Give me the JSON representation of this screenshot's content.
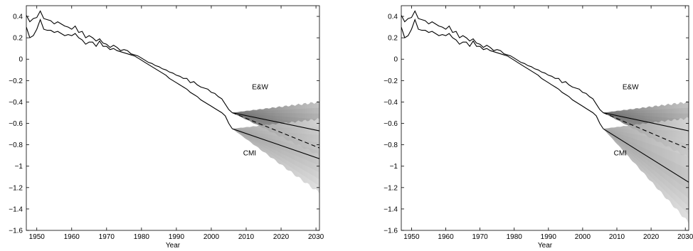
{
  "chart_data": [
    {
      "type": "line",
      "xlabel": "Year",
      "ylabel": "",
      "xlim": [
        1947,
        2031
      ],
      "ylim": [
        -1.6,
        0.5
      ],
      "xticks": [
        1950,
        1960,
        1970,
        1980,
        1990,
        2000,
        2010,
        2020,
        2030
      ],
      "yticks": [
        0.4,
        0.2,
        0,
        -0.2,
        -0.4,
        -0.6,
        -0.8,
        -1,
        -1.2,
        -1.4,
        -1.6
      ],
      "x_tick_labels": [
        "1950",
        "1960",
        "1970",
        "1980",
        "1990",
        "2000",
        "2010",
        "2020",
        "2030"
      ],
      "y_tick_labels": [
        "0.4",
        "0.2",
        "0",
        "−0.2",
        "−0.4",
        "−0.6",
        "−0.8",
        "−1",
        "−1.2",
        "−1.4",
        "−1.6"
      ],
      "grid": false,
      "annotations": [
        {
          "text": "E&W",
          "x": 2014,
          "y": -0.28
        },
        {
          "text": "CMI",
          "x": 2011,
          "y": -0.9
        }
      ],
      "historical": [
        {
          "label": "E&W",
          "x": [
            1947,
            1948,
            1949,
            1950,
            1951,
            1952,
            1953,
            1954,
            1955,
            1956,
            1957,
            1958,
            1959,
            1960,
            1961,
            1962,
            1963,
            1964,
            1965,
            1966,
            1967,
            1968,
            1969,
            1970,
            1971,
            1972,
            1973,
            1974,
            1975,
            1976,
            1977,
            1978,
            1979,
            1980,
            1981,
            1982,
            1983,
            1984,
            1985,
            1986,
            1987,
            1988,
            1989,
            1990,
            1991,
            1992,
            1993,
            1994,
            1995,
            1996,
            1997,
            1998,
            1999,
            2000,
            2001,
            2002,
            2003,
            2004,
            2005,
            2006
          ],
          "y": [
            0.41,
            0.35,
            0.38,
            0.39,
            0.45,
            0.38,
            0.37,
            0.36,
            0.33,
            0.35,
            0.33,
            0.31,
            0.3,
            0.28,
            0.31,
            0.25,
            0.26,
            0.2,
            0.22,
            0.2,
            0.17,
            0.19,
            0.15,
            0.14,
            0.11,
            0.13,
            0.11,
            0.08,
            0.09,
            0.08,
            0.05,
            0.04,
            0.03,
            0.01,
            -0.01,
            -0.03,
            -0.04,
            -0.06,
            -0.07,
            -0.09,
            -0.1,
            -0.12,
            -0.13,
            -0.15,
            -0.16,
            -0.18,
            -0.18,
            -0.22,
            -0.21,
            -0.24,
            -0.26,
            -0.27,
            -0.28,
            -0.31,
            -0.32,
            -0.35,
            -0.37,
            -0.42,
            -0.47,
            -0.5
          ]
        },
        {
          "label": "CMI",
          "x": [
            1947,
            1948,
            1949,
            1950,
            1951,
            1952,
            1953,
            1954,
            1955,
            1956,
            1957,
            1958,
            1959,
            1960,
            1961,
            1962,
            1963,
            1964,
            1965,
            1966,
            1967,
            1968,
            1969,
            1970,
            1971,
            1972,
            1973,
            1974,
            1975,
            1976,
            1977,
            1978,
            1979,
            1980,
            1981,
            1982,
            1983,
            1984,
            1985,
            1986,
            1987,
            1988,
            1989,
            1990,
            1991,
            1992,
            1993,
            1994,
            1995,
            1996,
            1997,
            1998,
            1999,
            2000,
            2001,
            2002,
            2003,
            2004,
            2005,
            2006
          ],
          "y": [
            0.3,
            0.2,
            0.22,
            0.28,
            0.37,
            0.28,
            0.27,
            0.27,
            0.25,
            0.26,
            0.24,
            0.22,
            0.23,
            0.22,
            0.24,
            0.2,
            0.18,
            0.14,
            0.16,
            0.16,
            0.12,
            0.17,
            0.12,
            0.12,
            0.09,
            0.1,
            0.08,
            0.07,
            0.06,
            0.05,
            0.04,
            0.03,
            0.01,
            -0.01,
            -0.03,
            -0.05,
            -0.07,
            -0.09,
            -0.11,
            -0.13,
            -0.15,
            -0.18,
            -0.2,
            -0.22,
            -0.24,
            -0.26,
            -0.28,
            -0.31,
            -0.33,
            -0.35,
            -0.38,
            -0.4,
            -0.42,
            -0.44,
            -0.46,
            -0.48,
            -0.5,
            -0.53,
            -0.6,
            -0.65
          ]
        }
      ],
      "projections": [
        {
          "label": "E&W",
          "x": [
            2006,
            2031
          ],
          "median": [
            -0.5,
            -0.67
          ],
          "dashed": [
            -0.5,
            -0.83
          ],
          "fan_upper": [
            -0.5,
            -0.4
          ],
          "fan_lower": [
            -0.5,
            -0.9
          ]
        },
        {
          "label": "CMI",
          "x": [
            2006,
            2031
          ],
          "median": [
            -0.65,
            -0.93
          ],
          "fan_upper": [
            -0.65,
            -0.56
          ],
          "fan_lower": [
            -0.65,
            -1.25
          ]
        }
      ]
    },
    {
      "type": "line",
      "xlabel": "Year",
      "ylabel": "",
      "xlim": [
        1947,
        2031
      ],
      "ylim": [
        -1.6,
        0.5
      ],
      "xticks": [
        1950,
        1960,
        1970,
        1980,
        1990,
        2000,
        2010,
        2020,
        2030
      ],
      "yticks": [
        0.4,
        0.2,
        0,
        -0.2,
        -0.4,
        -0.6,
        -0.8,
        -1,
        -1.2,
        -1.4,
        -1.6
      ],
      "x_tick_labels": [
        "1950",
        "1960",
        "1970",
        "1980",
        "1990",
        "2000",
        "2010",
        "2020",
        "2030"
      ],
      "y_tick_labels": [
        "0.4",
        "0.2",
        "0",
        "−0.2",
        "−0.4",
        "−0.6",
        "−0.8",
        "−1",
        "−1.2",
        "−1.4",
        "−1.6"
      ],
      "grid": false,
      "annotations": [
        {
          "text": "E&W",
          "x": 2014,
          "y": -0.28
        },
        {
          "text": "CMI",
          "x": 2011,
          "y": -0.9
        }
      ],
      "historical": [
        {
          "label": "E&W",
          "x": [
            1947,
            1948,
            1949,
            1950,
            1951,
            1952,
            1953,
            1954,
            1955,
            1956,
            1957,
            1958,
            1959,
            1960,
            1961,
            1962,
            1963,
            1964,
            1965,
            1966,
            1967,
            1968,
            1969,
            1970,
            1971,
            1972,
            1973,
            1974,
            1975,
            1976,
            1977,
            1978,
            1979,
            1980,
            1981,
            1982,
            1983,
            1984,
            1985,
            1986,
            1987,
            1988,
            1989,
            1990,
            1991,
            1992,
            1993,
            1994,
            1995,
            1996,
            1997,
            1998,
            1999,
            2000,
            2001,
            2002,
            2003,
            2004,
            2005,
            2006
          ],
          "y": [
            0.41,
            0.35,
            0.38,
            0.39,
            0.45,
            0.38,
            0.37,
            0.36,
            0.33,
            0.35,
            0.33,
            0.31,
            0.3,
            0.28,
            0.31,
            0.25,
            0.26,
            0.2,
            0.22,
            0.2,
            0.17,
            0.19,
            0.15,
            0.14,
            0.11,
            0.13,
            0.11,
            0.08,
            0.09,
            0.08,
            0.05,
            0.04,
            0.03,
            0.01,
            -0.01,
            -0.03,
            -0.04,
            -0.06,
            -0.07,
            -0.09,
            -0.1,
            -0.12,
            -0.13,
            -0.15,
            -0.16,
            -0.18,
            -0.18,
            -0.22,
            -0.21,
            -0.24,
            -0.26,
            -0.27,
            -0.28,
            -0.31,
            -0.32,
            -0.35,
            -0.37,
            -0.42,
            -0.47,
            -0.5
          ]
        },
        {
          "label": "CMI",
          "x": [
            1947,
            1948,
            1949,
            1950,
            1951,
            1952,
            1953,
            1954,
            1955,
            1956,
            1957,
            1958,
            1959,
            1960,
            1961,
            1962,
            1963,
            1964,
            1965,
            1966,
            1967,
            1968,
            1969,
            1970,
            1971,
            1972,
            1973,
            1974,
            1975,
            1976,
            1977,
            1978,
            1979,
            1980,
            1981,
            1982,
            1983,
            1984,
            1985,
            1986,
            1987,
            1988,
            1989,
            1990,
            1991,
            1992,
            1993,
            1994,
            1995,
            1996,
            1997,
            1998,
            1999,
            2000,
            2001,
            2002,
            2003,
            2004,
            2005,
            2006
          ],
          "y": [
            0.3,
            0.2,
            0.22,
            0.28,
            0.37,
            0.28,
            0.27,
            0.27,
            0.25,
            0.26,
            0.24,
            0.22,
            0.23,
            0.22,
            0.24,
            0.2,
            0.18,
            0.14,
            0.16,
            0.16,
            0.12,
            0.17,
            0.12,
            0.12,
            0.09,
            0.1,
            0.08,
            0.07,
            0.06,
            0.05,
            0.04,
            0.03,
            0.01,
            -0.01,
            -0.03,
            -0.05,
            -0.07,
            -0.09,
            -0.11,
            -0.13,
            -0.15,
            -0.18,
            -0.2,
            -0.22,
            -0.24,
            -0.26,
            -0.28,
            -0.31,
            -0.33,
            -0.35,
            -0.38,
            -0.4,
            -0.42,
            -0.44,
            -0.46,
            -0.48,
            -0.5,
            -0.53,
            -0.6,
            -0.65
          ]
        }
      ],
      "projections": [
        {
          "label": "E&W",
          "x": [
            2006,
            2031
          ],
          "median": [
            -0.5,
            -0.67
          ],
          "dashed": [
            -0.5,
            -0.84
          ],
          "fan_upper": [
            -0.5,
            -0.4
          ],
          "fan_lower": [
            -0.5,
            -0.92
          ]
        },
        {
          "label": "CMI",
          "x": [
            2006,
            2031
          ],
          "median": [
            -0.65,
            -1.15
          ],
          "fan_upper": [
            -0.65,
            -0.55
          ],
          "fan_lower": [
            -0.65,
            -1.53
          ]
        }
      ]
    }
  ],
  "colors": {
    "line": "#000000",
    "fan_ew": "#8f8f8f",
    "fan_cmi": "#b8b8b8",
    "background": "#ffffff"
  }
}
